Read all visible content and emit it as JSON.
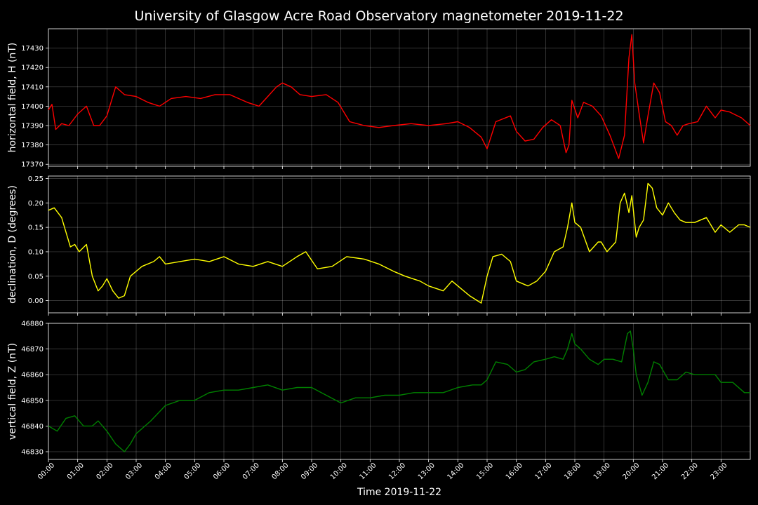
{
  "figure": {
    "title": "University of Glasgow Acre Road Observatory magnetometer 2019-11-22",
    "xlabel": "Time 2019-11-22"
  },
  "chart_data": [
    {
      "type": "line",
      "ylabel": "horizontal field, H (nT)",
      "color": "#ff0000",
      "ylim": [
        17369,
        17440
      ],
      "yticks": [
        17370,
        17380,
        17390,
        17400,
        17410,
        17420,
        17430
      ],
      "ytick_labels": [
        "17370",
        "17380",
        "17390",
        "17400",
        "17410",
        "17420",
        "17430"
      ],
      "xlim": [
        0,
        24
      ],
      "xticks": [
        0,
        1,
        2,
        3,
        4,
        5,
        6,
        7,
        8,
        9,
        10,
        11,
        12,
        13,
        14,
        15,
        16,
        17,
        18,
        19,
        20,
        21,
        22,
        23
      ],
      "xtick_labels": [
        "00:00",
        "01:00",
        "02:00",
        "03:00",
        "04:00",
        "05:00",
        "06:00",
        "07:00",
        "08:00",
        "09:00",
        "10:00",
        "11:00",
        "12:00",
        "13:00",
        "14:00",
        "15:00",
        "16:00",
        "17:00",
        "18:00",
        "19:00",
        "20:00",
        "21:00",
        "22:00",
        "23:00"
      ],
      "grid": true,
      "x": [
        0,
        0.12,
        0.25,
        0.45,
        0.7,
        1.0,
        1.3,
        1.55,
        1.75,
        2.0,
        2.3,
        2.6,
        3.0,
        3.4,
        3.8,
        4.2,
        4.7,
        5.2,
        5.7,
        6.2,
        6.8,
        7.2,
        7.5,
        7.8,
        8.0,
        8.3,
        8.6,
        9.0,
        9.5,
        9.9,
        10.3,
        10.8,
        11.3,
        11.8,
        12.4,
        13.0,
        13.6,
        14.0,
        14.4,
        14.8,
        15.0,
        15.3,
        15.8,
        16.0,
        16.3,
        16.6,
        16.9,
        17.2,
        17.5,
        17.7,
        17.8,
        17.9,
        18.1,
        18.3,
        18.6,
        18.9,
        19.2,
        19.5,
        19.7,
        19.85,
        19.95,
        20.05,
        20.2,
        20.35,
        20.5,
        20.7,
        20.9,
        21.1,
        21.3,
        21.5,
        21.7,
        21.9,
        22.2,
        22.5,
        22.8,
        23.0,
        23.3,
        23.7,
        24.0
      ],
      "values": [
        17398,
        17401,
        17388,
        17391,
        17390,
        17396,
        17400,
        17390,
        17390,
        17395,
        17410,
        17406,
        17405,
        17402,
        17400,
        17404,
        17405,
        17404,
        17406,
        17406,
        17402,
        17400,
        17405,
        17410,
        17412,
        17410,
        17406,
        17405,
        17406,
        17402,
        17392,
        17390,
        17389,
        17390,
        17391,
        17390,
        17391,
        17392,
        17389,
        17384,
        17378,
        17392,
        17395,
        17387,
        17382,
        17383,
        17389,
        17393,
        17390,
        17376,
        17380,
        17403,
        17394,
        17402,
        17400,
        17395,
        17385,
        17373,
        17385,
        17425,
        17437,
        17412,
        17396,
        17381,
        17395,
        17412,
        17407,
        17392,
        17390,
        17385,
        17390,
        17391,
        17392,
        17400,
        17394,
        17398,
        17397,
        17394,
        17390
      ]
    },
    {
      "type": "line",
      "ylabel": "declination, D (degrees)",
      "color": "#ffff00",
      "ylim": [
        -0.025,
        0.255
      ],
      "yticks": [
        0.0,
        0.05,
        0.1,
        0.15,
        0.2,
        0.25
      ],
      "ytick_labels": [
        "0.00",
        "0.05",
        "0.10",
        "0.15",
        "0.20",
        "0.25"
      ],
      "xlim": [
        0,
        24
      ],
      "xticks": [
        0,
        1,
        2,
        3,
        4,
        5,
        6,
        7,
        8,
        9,
        10,
        11,
        12,
        13,
        14,
        15,
        16,
        17,
        18,
        19,
        20,
        21,
        22,
        23
      ],
      "xtick_labels": [
        "00:00",
        "01:00",
        "02:00",
        "03:00",
        "04:00",
        "05:00",
        "06:00",
        "07:00",
        "08:00",
        "09:00",
        "10:00",
        "11:00",
        "12:00",
        "13:00",
        "14:00",
        "15:00",
        "16:00",
        "17:00",
        "18:00",
        "19:00",
        "20:00",
        "21:00",
        "22:00",
        "23:00"
      ],
      "grid": true,
      "x": [
        0,
        0.2,
        0.45,
        0.6,
        0.75,
        0.9,
        1.05,
        1.3,
        1.5,
        1.7,
        1.85,
        2.0,
        2.2,
        2.4,
        2.6,
        2.8,
        3.2,
        3.6,
        3.8,
        4.0,
        4.5,
        5.0,
        5.5,
        6.0,
        6.5,
        7.0,
        7.5,
        8.0,
        8.5,
        8.8,
        9.2,
        9.7,
        10.2,
        10.8,
        11.3,
        11.8,
        12.2,
        12.7,
        13.0,
        13.5,
        13.8,
        14.2,
        14.4,
        14.8,
        15.0,
        15.2,
        15.5,
        15.8,
        16.0,
        16.4,
        16.7,
        17.0,
        17.3,
        17.6,
        17.75,
        17.9,
        18.0,
        18.2,
        18.5,
        18.8,
        18.9,
        19.1,
        19.4,
        19.55,
        19.7,
        19.85,
        19.95,
        20.1,
        20.2,
        20.35,
        20.5,
        20.65,
        20.8,
        21.0,
        21.2,
        21.4,
        21.6,
        21.8,
        22.1,
        22.5,
        22.8,
        23.0,
        23.3,
        23.6,
        23.8,
        24.0
      ],
      "values": [
        0.185,
        0.19,
        0.17,
        0.14,
        0.11,
        0.115,
        0.1,
        0.115,
        0.05,
        0.02,
        0.03,
        0.045,
        0.02,
        0.005,
        0.01,
        0.05,
        0.07,
        0.08,
        0.09,
        0.075,
        0.08,
        0.085,
        0.08,
        0.09,
        0.075,
        0.07,
        0.08,
        0.07,
        0.09,
        0.1,
        0.065,
        0.07,
        0.09,
        0.085,
        0.075,
        0.06,
        0.05,
        0.04,
        0.03,
        0.02,
        0.04,
        0.02,
        0.01,
        -0.005,
        0.05,
        0.09,
        0.095,
        0.08,
        0.04,
        0.03,
        0.04,
        0.06,
        0.1,
        0.11,
        0.15,
        0.2,
        0.16,
        0.15,
        0.1,
        0.12,
        0.12,
        0.1,
        0.12,
        0.2,
        0.22,
        0.18,
        0.215,
        0.13,
        0.15,
        0.165,
        0.24,
        0.23,
        0.19,
        0.175,
        0.2,
        0.18,
        0.165,
        0.16,
        0.16,
        0.17,
        0.14,
        0.155,
        0.14,
        0.155,
        0.155,
        0.15
      ]
    },
    {
      "type": "line",
      "ylabel": "vertical field, Z (nT)",
      "color": "#008000",
      "ylim": [
        46827,
        46880
      ],
      "yticks": [
        46830,
        46840,
        46850,
        46860,
        46870,
        46880
      ],
      "ytick_labels": [
        "46830",
        "46840",
        "46850",
        "46860",
        "46870",
        "46880"
      ],
      "xlim": [
        0,
        24
      ],
      "xticks": [
        0,
        1,
        2,
        3,
        4,
        5,
        6,
        7,
        8,
        9,
        10,
        11,
        12,
        13,
        14,
        15,
        16,
        17,
        18,
        19,
        20,
        21,
        22,
        23
      ],
      "xtick_labels": [
        "00:00",
        "01:00",
        "02:00",
        "03:00",
        "04:00",
        "05:00",
        "06:00",
        "07:00",
        "08:00",
        "09:00",
        "10:00",
        "11:00",
        "12:00",
        "13:00",
        "14:00",
        "15:00",
        "16:00",
        "17:00",
        "18:00",
        "19:00",
        "20:00",
        "21:00",
        "22:00",
        "23:00"
      ],
      "grid": true,
      "x": [
        0,
        0.3,
        0.6,
        0.9,
        1.2,
        1.5,
        1.7,
        2.0,
        2.3,
        2.6,
        2.8,
        3.0,
        3.5,
        4.0,
        4.5,
        5.0,
        5.5,
        6.0,
        6.5,
        7.0,
        7.5,
        8.0,
        8.5,
        9.0,
        9.5,
        10.0,
        10.5,
        11.0,
        11.5,
        12.0,
        12.5,
        13.0,
        13.5,
        14.0,
        14.5,
        14.8,
        15.0,
        15.3,
        15.7,
        16.0,
        16.3,
        16.6,
        17.0,
        17.3,
        17.6,
        17.75,
        17.9,
        18.0,
        18.2,
        18.5,
        18.8,
        19.0,
        19.3,
        19.6,
        19.8,
        19.9,
        20.0,
        20.1,
        20.3,
        20.5,
        20.7,
        20.9,
        21.2,
        21.5,
        21.8,
        22.1,
        22.5,
        22.8,
        23.0,
        23.4,
        23.8,
        24.0
      ],
      "values": [
        46840,
        46838,
        46843,
        46844,
        46840,
        46840,
        46842,
        46838,
        46833,
        46830,
        46833,
        46837,
        46842,
        46848,
        46850,
        46850,
        46853,
        46854,
        46854,
        46855,
        46856,
        46854,
        46855,
        46855,
        46852,
        46849,
        46851,
        46851,
        46852,
        46852,
        46853,
        46853,
        46853,
        46855,
        46856,
        46856,
        46858,
        46865,
        46864,
        46861,
        46862,
        46865,
        46866,
        46867,
        46866,
        46870,
        46876,
        46872,
        46870,
        46866,
        46864,
        46866,
        46866,
        46865,
        46876,
        46877,
        46870,
        46860,
        46852,
        46857,
        46865,
        46864,
        46858,
        46858,
        46861,
        46860,
        46860,
        46860,
        46857,
        46857,
        46853,
        46853
      ]
    }
  ]
}
